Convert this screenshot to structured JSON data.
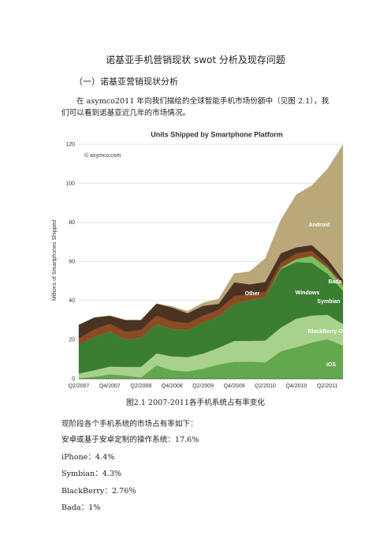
{
  "document": {
    "title": "诺基亚手机营销现状 swot 分析及现存问题",
    "heading": "（一）诺基亚营销现状分析",
    "paragraph": "在 asymco2011 年向我们描绘的全球智能手机市场份额中（见图 2.1），我们可以看到诺基亚近几年的市场情况。",
    "caption": "图2.1 2007-2011各手机系统占有率变化",
    "lines": [
      "现阶段各个手机系统的市场占有率如下：",
      "安卓或基于安卓定制的操作系统：17.6%",
      "iPhone：4.4%",
      "Symbian：4.3%",
      "BlackBerry：2.76％",
      "Bada：1%"
    ]
  },
  "chart_data": {
    "type": "stacked_area",
    "title": "Units Shipped by Smartphone Platform",
    "subtitle": "© asymco.com",
    "y_label": "Millions of Smartphones Shipped",
    "categories": [
      "Q2/2007",
      null,
      "Q4/2007",
      null,
      "Q2/2008",
      null,
      "Q4/2008",
      null,
      "Q2/2009",
      null,
      "Q4/2009",
      null,
      "Q2/2010",
      null,
      "Q4/2010",
      null,
      "Q2/2011",
      null
    ],
    "ylim": [
      0,
      120
    ],
    "yticks": [
      0,
      20,
      40,
      60,
      80,
      100,
      120
    ],
    "grid": true,
    "series": [
      {
        "name": "iOS",
        "color": "#64a84e",
        "values": [
          0.3,
          1.1,
          2.3,
          1.7,
          0.7,
          6.9,
          4.4,
          3.8,
          5.2,
          7.4,
          8.7,
          8.8,
          8.4,
          14.1,
          16.2,
          18.6,
          20.3,
          17.1
        ]
      },
      {
        "name": "BlackBerry OS",
        "color": "#a9d18e",
        "values": [
          2.4,
          3.3,
          4.0,
          4.4,
          5.4,
          6.1,
          7.1,
          7.3,
          7.7,
          8.5,
          10.7,
          10.6,
          11.2,
          12.1,
          14.6,
          13.8,
          12.5,
          11.0
        ]
      },
      {
        "name": "Symbian",
        "color": "#3b7d31",
        "values": [
          15,
          17,
          18,
          14,
          15,
          15,
          14,
          14,
          16,
          16,
          19,
          21,
          22,
          30,
          29,
          27,
          21,
          17
        ]
      },
      {
        "name": "Bada",
        "color": "#7cc060",
        "values": [
          0,
          0,
          0,
          0,
          0,
          0,
          0,
          0,
          0,
          0,
          0,
          0,
          0,
          0.6,
          1.5,
          3.5,
          3.1,
          2.5
        ]
      },
      {
        "name": "Windows",
        "color": "#8b4b23",
        "values": [
          3,
          4,
          4,
          4,
          4,
          4.5,
          4,
          3.5,
          3.5,
          3.5,
          4,
          3,
          3,
          2.5,
          3,
          2.6,
          1.5,
          1.2
        ]
      },
      {
        "name": "Other",
        "color": "#4a3322",
        "values": [
          7,
          6,
          4,
          6,
          5,
          6,
          7,
          5,
          5,
          3,
          7,
          5,
          5,
          5,
          3,
          3,
          3,
          2
        ]
      },
      {
        "name": "Android",
        "color": "#b8a87a",
        "values": [
          0,
          0,
          0,
          0,
          0,
          0,
          0.6,
          1,
          1.5,
          2.5,
          4.5,
          6.5,
          12,
          17,
          27,
          30.5,
          46,
          69
        ]
      }
    ]
  }
}
